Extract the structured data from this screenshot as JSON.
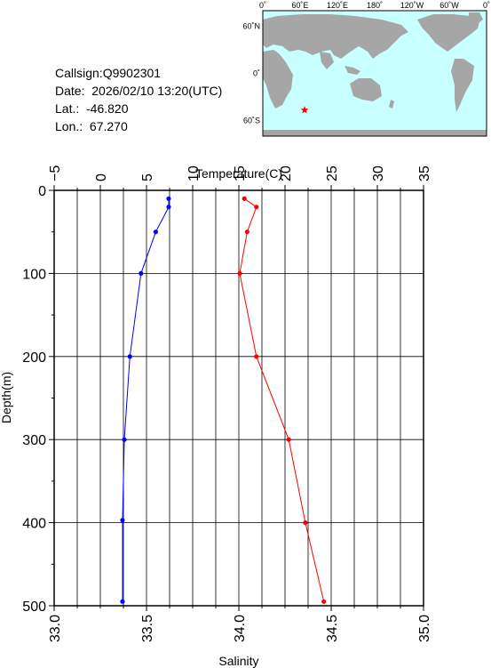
{
  "info": {
    "callsign": "Callsign:Q9902301",
    "date": "Date:  2026/02/10 13:20(UTC)",
    "lat": "Lat.:  -46.820",
    "lon": "Lon.:  67.270"
  },
  "map": {
    "top_labels": [
      "0˚",
      "60˚E",
      "120˚E",
      "180˚",
      "120˚W",
      "60˚W",
      "0˚"
    ],
    "side_labels": [
      "60˚N",
      "0˚",
      "60˚S"
    ],
    "ocean_color": "#c8ffff",
    "land_color": "#a6a6a6",
    "marker_color": "#ff0000",
    "station": {
      "lat": -46.82,
      "lon": 67.27
    }
  },
  "chart_data": {
    "type": "line",
    "ylabel": "Depth(m)",
    "ylim": [
      500,
      0
    ],
    "y_ticks": [
      "0",
      "100",
      "200",
      "300",
      "400",
      "500"
    ],
    "x_top": {
      "label": "Temperature(C)",
      "range": [
        -5,
        35
      ],
      "ticks": [
        "−5",
        "0",
        "5",
        "10",
        "15",
        "20",
        "25",
        "30",
        "35"
      ]
    },
    "x_bottom": {
      "label": "Salinity",
      "range": [
        33.0,
        35.0
      ],
      "ticks": [
        "33.0",
        "33.5",
        "34.0",
        "34.5",
        "35.0"
      ]
    },
    "grid": true,
    "series": [
      {
        "axis": "top",
        "color": "#ff0000",
        "points": [
          {
            "x": 15.6,
            "y": 10
          },
          {
            "x": 16.9,
            "y": 20
          },
          {
            "x": 15.9,
            "y": 50
          },
          {
            "x": 15.1,
            "y": 100
          },
          {
            "x": 16.9,
            "y": 200
          },
          {
            "x": 20.4,
            "y": 300
          },
          {
            "x": 22.2,
            "y": 400
          },
          {
            "x": 24.2,
            "y": 495
          }
        ]
      },
      {
        "axis": "bottom",
        "color": "#0000ff",
        "points": [
          {
            "x": 33.62,
            "y": 10
          },
          {
            "x": 33.62,
            "y": 20
          },
          {
            "x": 33.55,
            "y": 50
          },
          {
            "x": 33.47,
            "y": 100
          },
          {
            "x": 33.41,
            "y": 200
          },
          {
            "x": 33.38,
            "y": 300
          },
          {
            "x": 33.37,
            "y": 397
          },
          {
            "x": 33.37,
            "y": 495
          }
        ]
      }
    ]
  }
}
